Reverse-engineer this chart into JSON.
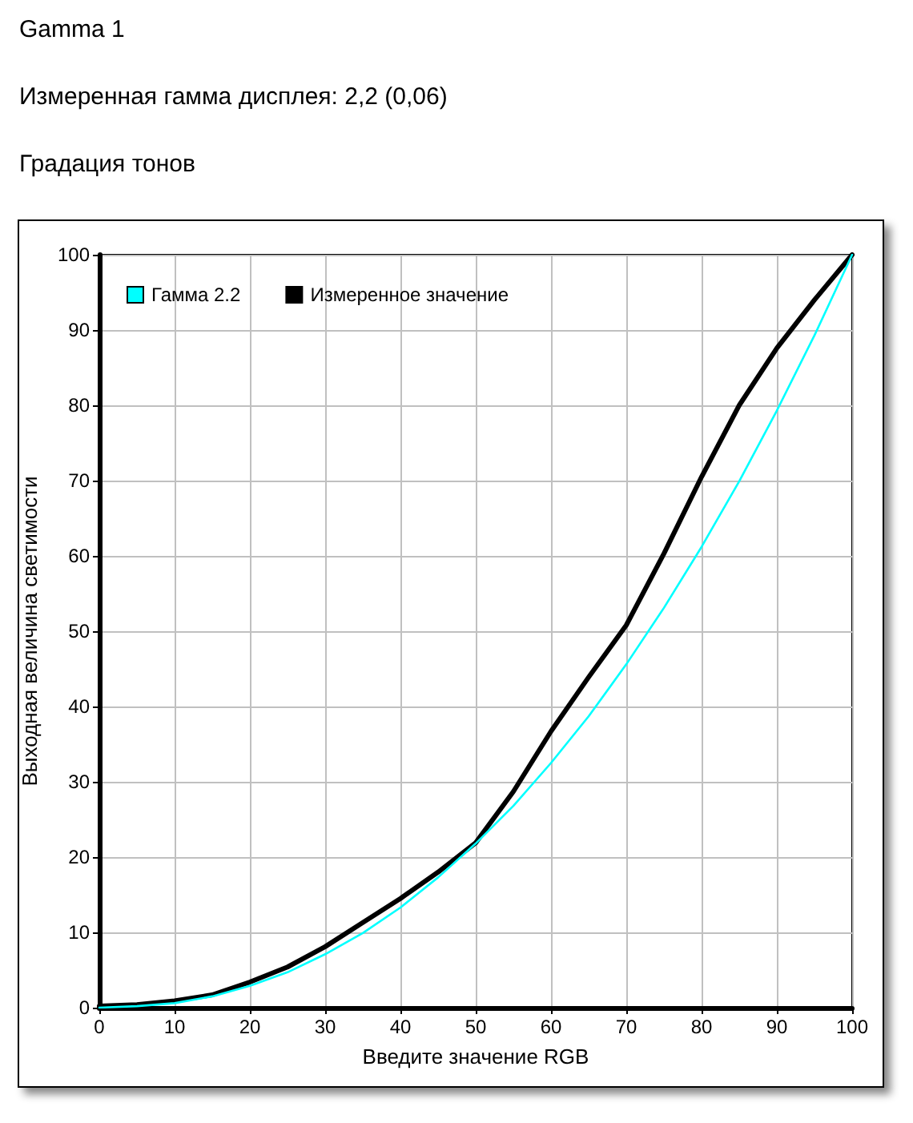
{
  "chart_data": {
    "type": "line",
    "title": "Gamma 1",
    "subtitle": "Измеренная гамма дисплея: 2,2 (0,06)",
    "annotations": [
      "Градация тонов"
    ],
    "xlabel": "Введите значение RGB",
    "ylabel": "Выходная величина светимости",
    "x": [
      0,
      5,
      10,
      15,
      20,
      25,
      30,
      35,
      40,
      45,
      50,
      55,
      60,
      65,
      70,
      75,
      80,
      85,
      90,
      95,
      100
    ],
    "series": [
      {
        "name": "Гамма 2.2",
        "color": "#00ffff",
        "values": [
          0,
          0.2,
          0.6,
          1.5,
          2.9,
          4.7,
          7.1,
          9.9,
          13.3,
          17.3,
          21.8,
          26.8,
          32.5,
          38.7,
          45.6,
          53.1,
          61.2,
          69.9,
          79.3,
          89.3,
          100
        ]
      },
      {
        "name": "Измеренное значение",
        "color": "#000000",
        "values": [
          0.2,
          0.4,
          0.9,
          1.7,
          3.4,
          5.4,
          8.1,
          11.3,
          14.5,
          18,
          21.9,
          28.7,
          36.7,
          43.9,
          50.8,
          60.3,
          70.5,
          80,
          87.6,
          94,
          100
        ]
      }
    ],
    "xlim": [
      0,
      100
    ],
    "ylim": [
      0,
      100
    ],
    "xticks": [
      0,
      10,
      20,
      30,
      40,
      50,
      60,
      70,
      80,
      90,
      100
    ],
    "yticks": [
      0,
      10,
      20,
      30,
      40,
      50,
      60,
      70,
      80,
      90,
      100
    ],
    "grid": true,
    "legend": "top left",
    "marker": "none",
    "line_style": "solid"
  }
}
